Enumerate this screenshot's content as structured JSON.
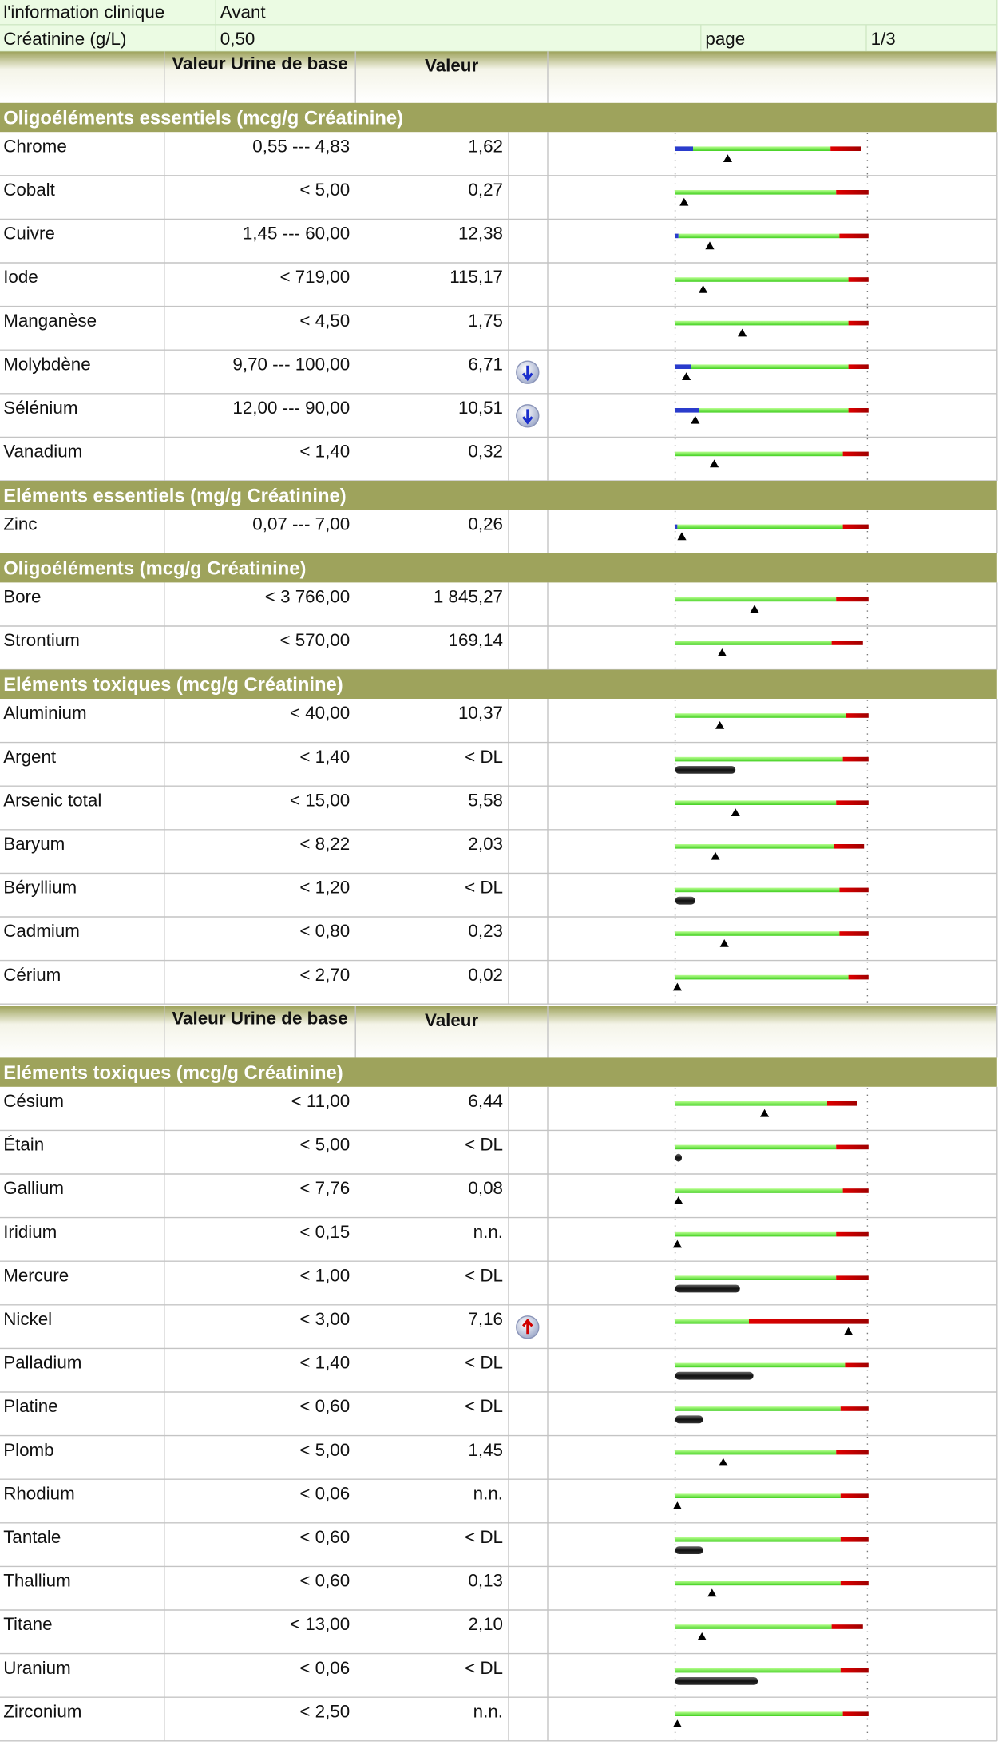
{
  "info": {
    "rows": [
      [
        "l'information clinique",
        "Avant"
      ],
      [
        "Créatinine (g/L)",
        "0,50",
        "page",
        "1/3"
      ]
    ]
  },
  "blocks": [
    {
      "header": [
        "Valeur Urine de base",
        "Valeur"
      ],
      "sections": [
        {
          "title": "Oligoéléments essentiels (mcg/g Créatinine)",
          "rows": [
            [
              "Chrome",
              "0,55 --- 4,83",
              "1,62"
            ],
            [
              "Cobalt",
              "< 5,00",
              "0,27"
            ],
            [
              "Cuivre",
              "1,45 --- 60,00",
              "12,38"
            ],
            [
              "Iode",
              "< 719,00",
              "115,17"
            ],
            [
              "Manganèse",
              "< 4,50",
              "1,75"
            ],
            [
              "Molybdène",
              "9,70 --- 100,00",
              "6,71"
            ],
            [
              "Sélénium",
              "12,00 --- 90,00",
              "10,51"
            ],
            [
              "Vanadium",
              "< 1,40",
              "0,32"
            ]
          ]
        },
        {
          "title": "Eléments essentiels (mg/g Créatinine)",
          "rows": [
            [
              "Zinc",
              "0,07 --- 7,00",
              "0,26"
            ]
          ]
        },
        {
          "title": "Oligoéléments (mcg/g Créatinine)",
          "rows": [
            [
              "Bore",
              "< 3 766,00",
              "1 845,27"
            ],
            [
              "Strontium",
              "< 570,00",
              "169,14"
            ]
          ]
        },
        {
          "title": "Eléments toxiques (mcg/g Créatinine)",
          "rows": [
            [
              "Aluminium",
              "< 40,00",
              "10,37"
            ],
            [
              "Argent",
              "< 1,40",
              "< DL"
            ],
            [
              "Arsenic total",
              "< 15,00",
              "5,58"
            ],
            [
              "Baryum",
              "< 8,22",
              "2,03"
            ],
            [
              "Béryllium",
              "< 1,20",
              "< DL"
            ],
            [
              "Cadmium",
              "< 0,80",
              "0,23"
            ],
            [
              "Cérium",
              "< 2,70",
              "0,02"
            ]
          ]
        }
      ]
    },
    {
      "header": [
        "Valeur Urine de base",
        "Valeur"
      ],
      "sections": [
        {
          "title": "Eléments toxiques (mcg/g Créatinine)",
          "rows": [
            [
              "Césium",
              "< 11,00",
              "6,44"
            ],
            [
              "Étain",
              "< 5,00",
              "< DL"
            ],
            [
              "Gallium",
              "< 7,76",
              "0,08"
            ],
            [
              "Iridium",
              "< 0,15",
              "n.n."
            ],
            [
              "Mercure",
              "< 1,00",
              "< DL"
            ],
            [
              "Nickel",
              "< 3,00",
              "7,16"
            ],
            [
              "Palladium",
              "< 1,40",
              "< DL"
            ],
            [
              "Platine",
              "< 0,60",
              "< DL"
            ],
            [
              "Plomb",
              "< 5,00",
              "1,45"
            ],
            [
              "Rhodium",
              "< 0,06",
              "n.n."
            ],
            [
              "Tantale",
              "< 0,60",
              "< DL"
            ],
            [
              "Thallium",
              "< 0,60",
              "0,13"
            ],
            [
              "Titane",
              "< 13,00",
              "2,10"
            ],
            [
              "Uranium",
              "< 0,06",
              "< DL"
            ],
            [
              "Zirconium",
              "< 2,50",
              "n.n."
            ]
          ]
        }
      ]
    }
  ]
}
